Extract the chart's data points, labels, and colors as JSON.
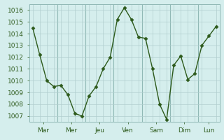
{
  "y_data": [
    1014.5,
    1012.2,
    1010.0,
    1009.5,
    1009.6,
    1008.8,
    1007.2,
    1007.0,
    1008.7,
    1009.5,
    1011.0,
    1012.0,
    1015.2,
    1016.2,
    1015.2,
    1013.7,
    1013.6,
    1011.0,
    1008.0,
    1006.7,
    1011.3,
    1012.1,
    1010.1,
    1010.6,
    1013.0,
    1013.8,
    1014.6
  ],
  "day_labels": [
    "Mar",
    "Mer",
    "Jeu",
    "Ven",
    "Sam",
    "Dim",
    "Lun"
  ],
  "pts_per_day": 4,
  "last_day_pts": 3,
  "ylim": [
    1006.5,
    1016.5
  ],
  "yticks": [
    1007,
    1008,
    1009,
    1010,
    1011,
    1012,
    1013,
    1014,
    1015,
    1016
  ],
  "line_color": "#2d5a1b",
  "marker": "D",
  "marker_size": 2.5,
  "bg_color": "#d5eeed",
  "grid_color": "#b0cece",
  "sep_color": "#90b8b5",
  "tick_color": "#2d5a1b",
  "tick_fontsize": 6.5,
  "linewidth": 1.0
}
